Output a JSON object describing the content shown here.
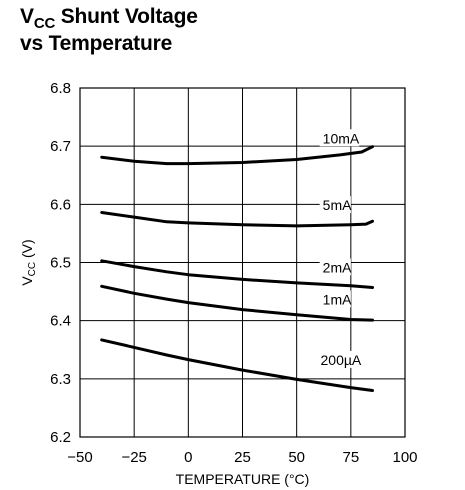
{
  "chart_data": {
    "type": "line",
    "title": {
      "main": "V",
      "sub": "CC",
      "rest": " Shunt Voltage",
      "line2": "vs Temperature"
    },
    "xlabel": "TEMPERATURE (°C)",
    "ylabel": {
      "main": "V",
      "sub": "CC",
      "rest": " (V)"
    },
    "xlim": [
      -50,
      100
    ],
    "ylim": [
      6.2,
      6.8
    ],
    "xticks": [
      -50,
      -25,
      0,
      25,
      50,
      75,
      100
    ],
    "yticks": [
      6.2,
      6.3,
      6.4,
      6.5,
      6.6,
      6.7,
      6.8
    ],
    "grid": true,
    "series": [
      {
        "name": "10mA",
        "x": [
          -40,
          -25,
          -10,
          0,
          25,
          50,
          70,
          80,
          85
        ],
        "y": [
          6.681,
          6.674,
          6.67,
          6.67,
          6.672,
          6.677,
          6.685,
          6.69,
          6.699
        ]
      },
      {
        "name": "5mA",
        "x": [
          -40,
          -25,
          -10,
          0,
          25,
          50,
          75,
          82,
          85
        ],
        "y": [
          6.586,
          6.578,
          6.57,
          6.568,
          6.565,
          6.563,
          6.565,
          6.566,
          6.571
        ]
      },
      {
        "name": "2mA",
        "x": [
          -40,
          -25,
          -10,
          0,
          25,
          50,
          75,
          85
        ],
        "y": [
          6.503,
          6.493,
          6.484,
          6.479,
          6.471,
          6.465,
          6.46,
          6.457
        ]
      },
      {
        "name": "1mA",
        "x": [
          -40,
          -25,
          -10,
          0,
          25,
          50,
          75,
          85
        ],
        "y": [
          6.459,
          6.447,
          6.437,
          6.431,
          6.419,
          6.41,
          6.402,
          6.401
        ]
      },
      {
        "name": "200µA",
        "x": [
          -40,
          -25,
          -10,
          0,
          25,
          50,
          75,
          85
        ],
        "y": [
          6.367,
          6.354,
          6.341,
          6.333,
          6.315,
          6.299,
          6.285,
          6.28
        ]
      }
    ],
    "labels": [
      {
        "text": "10mA",
        "x": 62,
        "y": 6.705
      },
      {
        "text": "5mA",
        "x": 62,
        "y": 6.59
      },
      {
        "text": "2mA",
        "x": 62,
        "y": 6.483
      },
      {
        "text": "1mA",
        "x": 62,
        "y": 6.428
      },
      {
        "text": "200µA",
        "x": 61,
        "y": 6.324
      }
    ]
  }
}
